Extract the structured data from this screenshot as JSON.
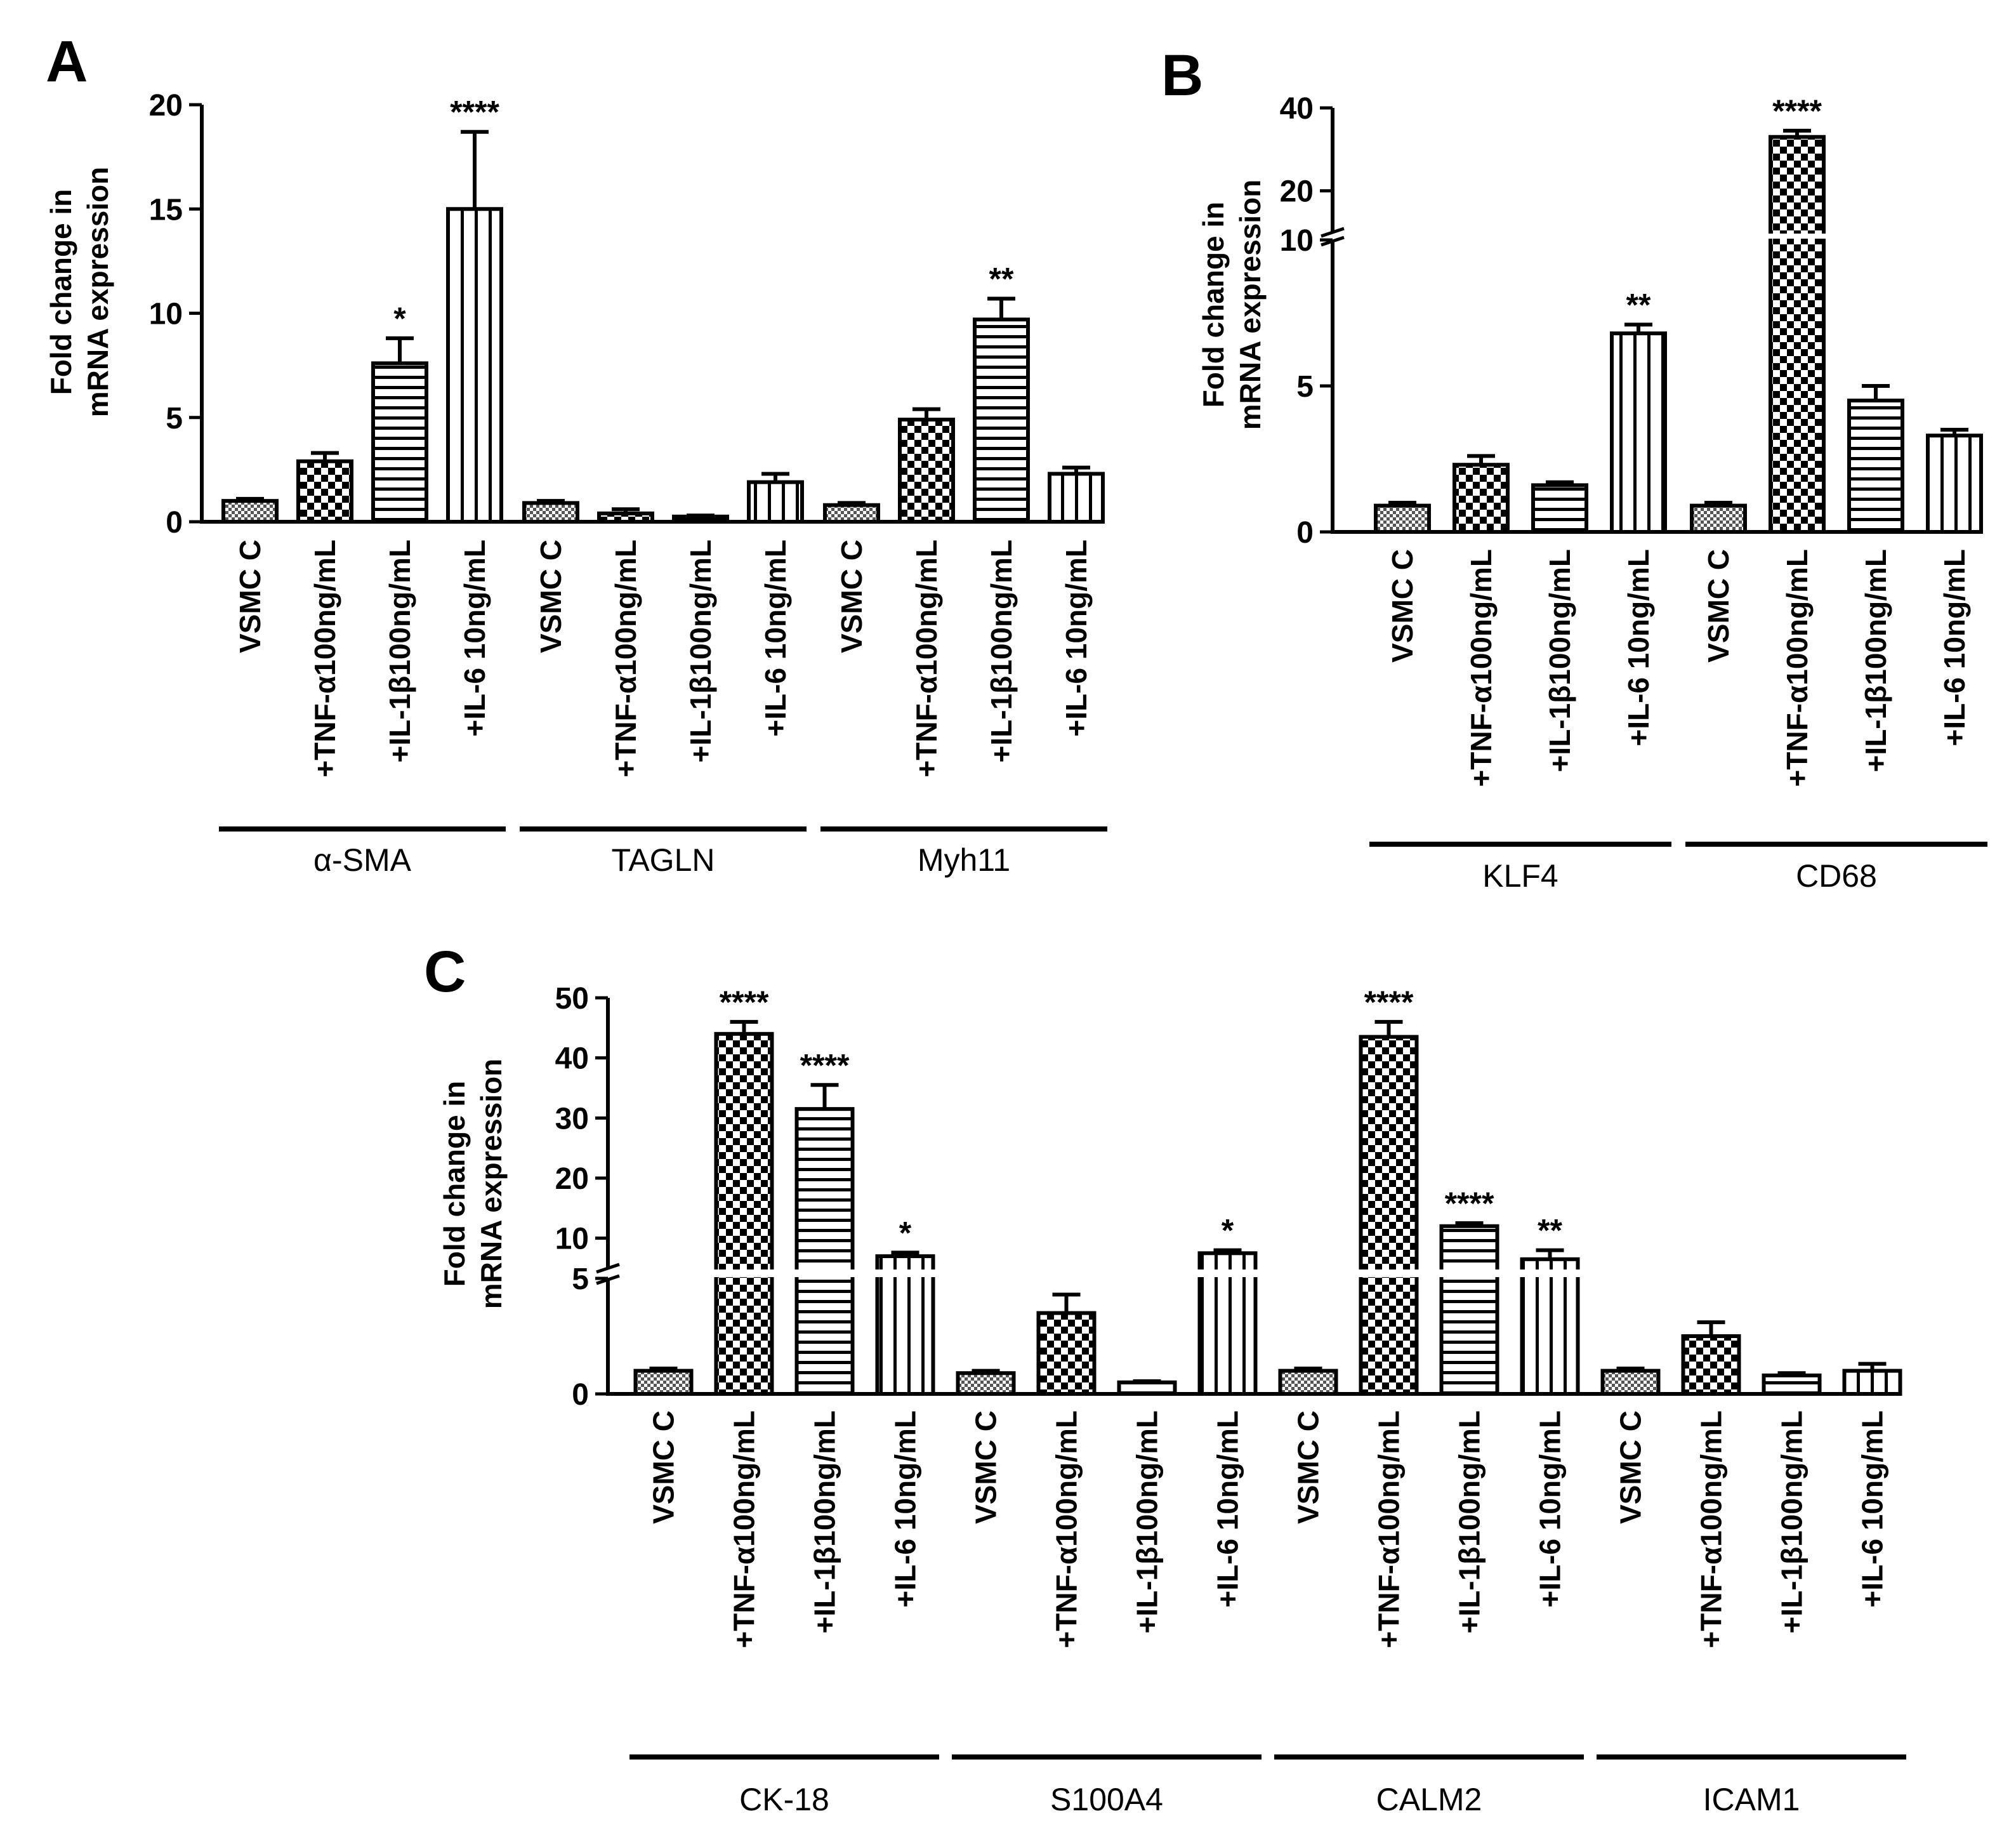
{
  "figure": {
    "colors": {
      "ink": "#000000",
      "paper": "#ffffff",
      "checker_dark": "#000000",
      "checker_light": "#ffffff"
    },
    "panels": {
      "A": {
        "letter": "A",
        "ylabel": [
          "Fold change in",
          "mRNA expression"
        ]
      },
      "B": {
        "letter": "B",
        "ylabel": [
          "Fold change in",
          "mRNA expression"
        ]
      },
      "C": {
        "letter": "C",
        "ylabel": [
          "Fold change in",
          "mRNA expression"
        ]
      }
    }
  },
  "chart_data": [
    {
      "panel": "A",
      "type": "bar",
      "ylabel": "Fold change in mRNA expression",
      "ylim": [
        0,
        20
      ],
      "yticks": [
        "0",
        "5",
        "10",
        "15",
        "20"
      ],
      "legend": "none",
      "groups": [
        {
          "name": "α-SMA",
          "bars": [
            {
              "label": "VSMC C",
              "value": 1.0,
              "err": 0.1,
              "pattern": "fine",
              "sig": ""
            },
            {
              "label": "+TNF-α100ng/mL",
              "value": 2.9,
              "err": 0.4,
              "pattern": "checker",
              "sig": ""
            },
            {
              "label": "+IL-1β100ng/mL",
              "value": 7.6,
              "err": 1.2,
              "pattern": "hstripe",
              "sig": "*"
            },
            {
              "label": "+IL-6 10ng/mL",
              "value": 15.0,
              "err": 3.7,
              "pattern": "vstripe",
              "sig": "****"
            }
          ]
        },
        {
          "name": "TAGLN",
          "bars": [
            {
              "label": "VSMC C",
              "value": 0.9,
              "err": 0.1,
              "pattern": "fine",
              "sig": ""
            },
            {
              "label": "+TNF-α100ng/mL",
              "value": 0.4,
              "err": 0.2,
              "pattern": "checker",
              "sig": ""
            },
            {
              "label": "+IL-1β100ng/mL",
              "value": 0.25,
              "err": 0.05,
              "pattern": "hstripe",
              "sig": ""
            },
            {
              "label": "+IL-6 10ng/mL",
              "value": 1.9,
              "err": 0.4,
              "pattern": "vstripe",
              "sig": ""
            }
          ]
        },
        {
          "name": "Myh11",
          "bars": [
            {
              "label": "VSMC C",
              "value": 0.8,
              "err": 0.1,
              "pattern": "fine",
              "sig": ""
            },
            {
              "label": "+TNF-α100ng/mL",
              "value": 4.9,
              "err": 0.5,
              "pattern": "checker",
              "sig": ""
            },
            {
              "label": "+IL-1β100ng/mL",
              "value": 9.7,
              "err": 1.0,
              "pattern": "hstripe",
              "sig": "**"
            },
            {
              "label": "+IL-6 10ng/mL",
              "value": 2.3,
              "err": 0.3,
              "pattern": "vstripe",
              "sig": ""
            }
          ]
        }
      ]
    },
    {
      "panel": "B",
      "type": "bar",
      "ylabel": "Fold change in mRNA expression",
      "ylim": [
        0,
        40
      ],
      "axis_break": {
        "lower": [
          0,
          10
        ],
        "upper": [
          10,
          40
        ]
      },
      "yticks": [
        "0",
        "5",
        "10",
        "20",
        "40"
      ],
      "legend": "none",
      "groups": [
        {
          "name": "KLF4",
          "bars": [
            {
              "label": "VSMC C",
              "value": 0.9,
              "err": 0.1,
              "pattern": "fine",
              "sig": ""
            },
            {
              "label": "+TNF-α100ng/mL",
              "value": 2.3,
              "err": 0.3,
              "pattern": "checker",
              "sig": ""
            },
            {
              "label": "+IL-1β100ng/mL",
              "value": 1.6,
              "err": 0.1,
              "pattern": "hstripe",
              "sig": ""
            },
            {
              "label": "+IL-6 10ng/mL",
              "value": 6.8,
              "err": 0.3,
              "pattern": "vstripe",
              "sig": "**"
            }
          ]
        },
        {
          "name": "CD68",
          "bars": [
            {
              "label": "VSMC C",
              "value": 0.9,
              "err": 0.1,
              "pattern": "fine",
              "sig": ""
            },
            {
              "label": "+TNF-α100ng/mL",
              "value": 33.0,
              "err": 1.5,
              "pattern": "checker",
              "sig": "****"
            },
            {
              "label": "+IL-1β100ng/mL",
              "value": 4.5,
              "err": 0.5,
              "pattern": "hstripe",
              "sig": ""
            },
            {
              "label": "+IL-6 10ng/mL",
              "value": 3.3,
              "err": 0.2,
              "pattern": "vstripe",
              "sig": ""
            }
          ]
        }
      ]
    },
    {
      "panel": "C",
      "type": "bar",
      "ylabel": "Fold change in mRNA expression",
      "ylim": [
        0,
        50
      ],
      "axis_break": {
        "lower": [
          0,
          5
        ],
        "upper": [
          5,
          50
        ]
      },
      "yticks": [
        "0",
        "5",
        "10",
        "20",
        "30",
        "40",
        "50"
      ],
      "legend": "none",
      "groups": [
        {
          "name": "CK-18",
          "bars": [
            {
              "label": "VSMC C",
              "value": 1.0,
              "err": 0.1,
              "pattern": "fine",
              "sig": ""
            },
            {
              "label": "+TNF-α100ng/mL",
              "value": 44.0,
              "err": 2.0,
              "pattern": "checker",
              "sig": "****"
            },
            {
              "label": "+IL-1β100ng/mL",
              "value": 31.5,
              "err": 4.0,
              "pattern": "hstripe",
              "sig": "****"
            },
            {
              "label": "+IL-6 10ng/mL",
              "value": 7.0,
              "err": 0.6,
              "pattern": "vstripe",
              "sig": "*"
            }
          ]
        },
        {
          "name": "S100A4",
          "bars": [
            {
              "label": "VSMC C",
              "value": 0.9,
              "err": 0.1,
              "pattern": "fine",
              "sig": ""
            },
            {
              "label": "+TNF-α100ng/mL",
              "value": 3.5,
              "err": 0.8,
              "pattern": "checker",
              "sig": ""
            },
            {
              "label": "+IL-1β100ng/mL",
              "value": 0.5,
              "err": 0.05,
              "pattern": "hstripe",
              "sig": ""
            },
            {
              "label": "+IL-6 10ng/mL",
              "value": 7.5,
              "err": 0.5,
              "pattern": "vstripe",
              "sig": "*"
            }
          ]
        },
        {
          "name": "CALM2",
          "bars": [
            {
              "label": "VSMC C",
              "value": 1.0,
              "err": 0.1,
              "pattern": "fine",
              "sig": ""
            },
            {
              "label": "+TNF-α100ng/mL",
              "value": 43.5,
              "err": 2.5,
              "pattern": "checker",
              "sig": "****"
            },
            {
              "label": "+IL-1β100ng/mL",
              "value": 12.0,
              "err": 0.5,
              "pattern": "hstripe",
              "sig": "****"
            },
            {
              "label": "+IL-6 10ng/mL",
              "value": 6.5,
              "err": 1.5,
              "pattern": "vstripe",
              "sig": "**"
            }
          ]
        },
        {
          "name": "ICAM1",
          "bars": [
            {
              "label": "VSMC C",
              "value": 1.0,
              "err": 0.1,
              "pattern": "fine",
              "sig": ""
            },
            {
              "label": "+TNF-α100ng/mL",
              "value": 2.5,
              "err": 0.6,
              "pattern": "checker",
              "sig": ""
            },
            {
              "label": "+IL-1β100ng/mL",
              "value": 0.8,
              "err": 0.1,
              "pattern": "hstripe",
              "sig": ""
            },
            {
              "label": "+IL-6 10ng/mL",
              "value": 1.0,
              "err": 0.3,
              "pattern": "vstripe",
              "sig": ""
            }
          ]
        }
      ]
    }
  ]
}
